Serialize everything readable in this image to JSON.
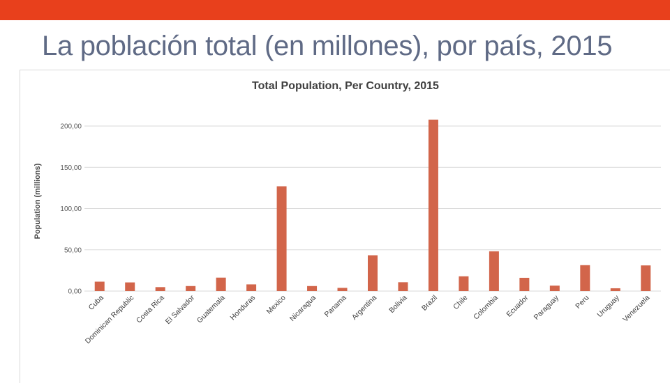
{
  "slide": {
    "title": "La población total (en millones), por país, 2015",
    "accent_color": "#e8401c",
    "title_color": "#5f6a85"
  },
  "chart_data": {
    "type": "bar",
    "title": "Total Population, Per Country, 2015",
    "xlabel": "",
    "ylabel": "Population (millions)",
    "ylim": [
      0,
      200
    ],
    "yticks": [
      0,
      50,
      100,
      150,
      200
    ],
    "ytick_labels": [
      "0,00",
      "50,00",
      "100,00",
      "150,00",
      "200,00"
    ],
    "grid": true,
    "bar_color": "#d2654a",
    "categories": [
      "Cuba",
      "Dominican Republic",
      "Costa Rica",
      "El Salvador",
      "Guatemala",
      "Honduras",
      "Mexico",
      "Nicaragua",
      "Panama",
      "Argentina",
      "Bolivia",
      "Brazil",
      "Chile",
      "Colombia",
      "Ecuador",
      "Paraguay",
      "Peru",
      "Uruguay",
      "Venezuela"
    ],
    "values": [
      11.4,
      10.5,
      4.8,
      6.1,
      16.3,
      8.1,
      127.0,
      6.1,
      3.9,
      43.4,
      10.7,
      207.8,
      17.9,
      48.2,
      16.1,
      6.6,
      31.4,
      3.4,
      31.1
    ]
  }
}
